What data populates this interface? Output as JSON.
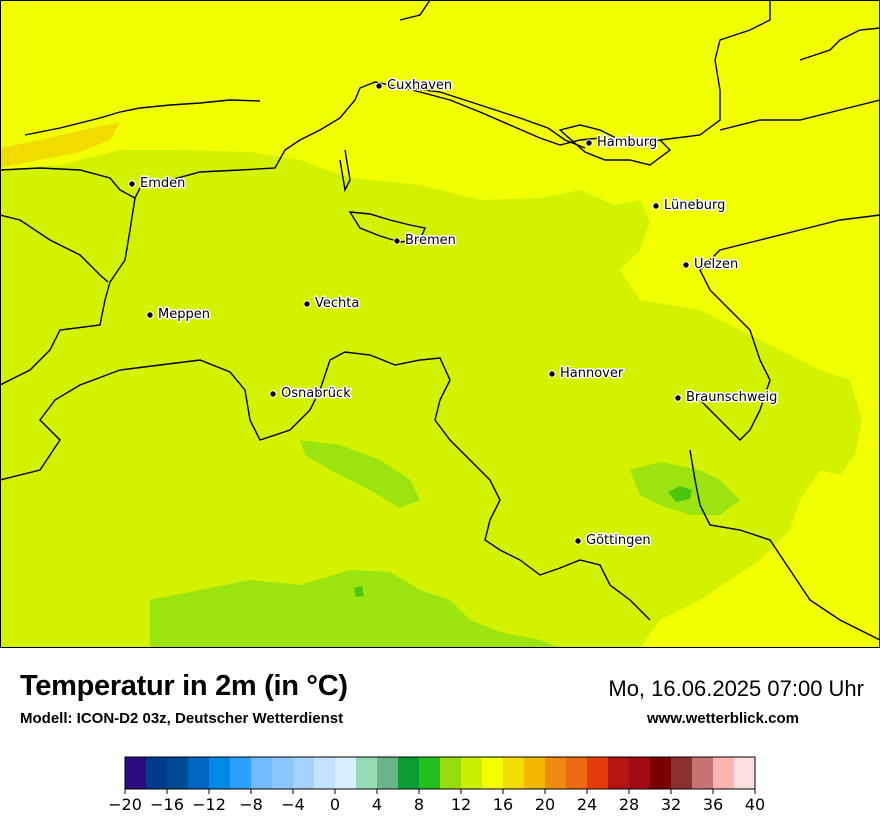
{
  "title": "Temperatur in 2m (in °C)",
  "model": "Modell: ICON-D2 03z, Deutscher Wetterdienst",
  "datetime": "Mo, 16.06.2025 07:00 Uhr",
  "website": "www.wetterblick.com",
  "cities": [
    {
      "name": "Cuxhaven"
    },
    {
      "name": "Hamburg"
    },
    {
      "name": "Emden"
    },
    {
      "name": "Lüneburg"
    },
    {
      "name": "Bremen"
    },
    {
      "name": "Uelzen"
    },
    {
      "name": "Vechta"
    },
    {
      "name": "Meppen"
    },
    {
      "name": "Hannover"
    },
    {
      "name": "Osnabrück"
    },
    {
      "name": "Braunschweig"
    },
    {
      "name": "Göttingen"
    }
  ],
  "colorbar": {
    "unit": "°C",
    "min": -20,
    "max": 40,
    "step": 2,
    "tick_labels": [
      "−20",
      "−16",
      "−12",
      "−8",
      "−4",
      "0",
      "4",
      "8",
      "12",
      "16",
      "20",
      "24",
      "28",
      "32",
      "36",
      "40"
    ],
    "colors": [
      "#2d0a7f",
      "#003a8a",
      "#004a94",
      "#0066c4",
      "#0088e8",
      "#2aa0ff",
      "#72baff",
      "#8ac6ff",
      "#a6d2ff",
      "#c4e2ff",
      "#d8eeff",
      "#96dcb8",
      "#6ab48a",
      "#0c9c32",
      "#22c01c",
      "#96dc0c",
      "#c8ee00",
      "#f2ff00",
      "#f0dc00",
      "#f2b800",
      "#f08a10",
      "#ee6a10",
      "#e63a0a",
      "#b41414",
      "#a00a10",
      "#780000",
      "#8c3030",
      "#c87474",
      "#ffb4b4",
      "#ffdede"
    ]
  },
  "field_colors": {
    "yellow": "#f2ff00",
    "yellow_green": "#d2f200",
    "light_green": "#9be410",
    "green": "#4cc60c",
    "orange": "#f0dc00"
  }
}
